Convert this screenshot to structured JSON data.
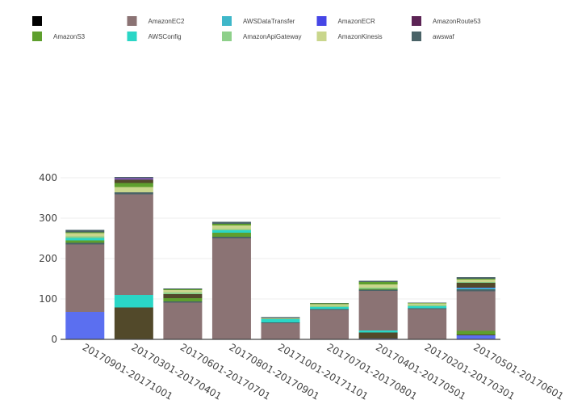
{
  "chart_data": {
    "type": "bar",
    "stacked": true,
    "categories": [
      "20170901-20171001",
      "20170301-20170401",
      "20170601-20170701",
      "20170801-20170901",
      "20171001-20171101",
      "20170701-20170801",
      "20170401-20170501",
      "20170201-20170301",
      "20170501-20170601"
    ],
    "ylim": [
      0,
      410
    ],
    "y_ticks": [
      0,
      100,
      200,
      300,
      400
    ],
    "grid": true,
    "legend_position": "top",
    "series": [
      {
        "name": "",
        "color": "#000000",
        "values": [
          0,
          0,
          0,
          0,
          0,
          0,
          0,
          0,
          0
        ]
      },
      {
        "name": "AmazonECR",
        "color": "#5B6FF0",
        "values": [
          68,
          0,
          0,
          0,
          0,
          0,
          2,
          0,
          10
        ]
      },
      {
        "name": "AWSDataTransfer",
        "color": "#52492A",
        "values": [
          0,
          79,
          0,
          0,
          0,
          0,
          15,
          0,
          2
        ]
      },
      {
        "name": "AWSConfig",
        "color": "#2AD6C6",
        "values": [
          0,
          31,
          0,
          0,
          0,
          0,
          5,
          0,
          0
        ]
      },
      {
        "name": "AmazonS3",
        "color": "#5E9F2E",
        "values": [
          0,
          0,
          0,
          0,
          0,
          0,
          0,
          0,
          9
        ]
      },
      {
        "name": "AmazonEC2",
        "color": "#8B7374",
        "values": [
          167,
          249,
          91,
          250,
          40,
          73,
          98,
          75,
          98
        ]
      },
      {
        "name": "awswaf",
        "color": "#4A6367",
        "values": [
          4,
          5,
          3,
          4,
          2,
          2,
          3,
          2,
          5
        ]
      },
      {
        "name": "AmazonRoute53",
        "color": "#5E9F2E",
        "values": [
          6,
          0,
          8,
          10,
          0,
          0,
          2,
          0,
          0
        ]
      },
      {
        "name": "AWSConfig",
        "color": "#2AD6C6",
        "values": [
          6,
          0,
          0,
          6,
          8,
          5,
          0,
          5,
          2
        ]
      },
      {
        "name": "AmazonKinesis",
        "color": "#5B6FF0",
        "values": [
          0,
          0,
          0,
          0,
          0,
          0,
          0,
          0,
          2
        ]
      },
      {
        "name": "AWSDataTransfer",
        "color": "#52492A",
        "values": [
          0,
          0,
          10,
          0,
          0,
          0,
          0,
          0,
          12
        ]
      },
      {
        "name": "AmazonApiGateway",
        "color": "#8ED08A",
        "values": [
          4,
          0,
          4,
          3,
          1,
          3,
          3,
          3,
          2
        ]
      },
      {
        "name": "AmazonKinesis",
        "color": "#C9D68C",
        "values": [
          8,
          13,
          6,
          9,
          1,
          4,
          8,
          4,
          6
        ]
      },
      {
        "name": "AmazonS3",
        "color": "#5E9F2E",
        "values": [
          2,
          10,
          2,
          4,
          0,
          2,
          6,
          1,
          2
        ]
      },
      {
        "name": "AWSDataTransfer",
        "color": "#52492A",
        "values": [
          0,
          8,
          0,
          0,
          0,
          0,
          0,
          0,
          0
        ]
      },
      {
        "name": "AmazonRoute53",
        "color": "#7A5AA8",
        "values": [
          0,
          5,
          0,
          0,
          0,
          0,
          0,
          0,
          0
        ]
      },
      {
        "name": "awswaf",
        "color": "#4A6367",
        "values": [
          6,
          2,
          2,
          5,
          3,
          1,
          3,
          1,
          4
        ]
      }
    ],
    "legend": [
      {
        "name": "",
        "color": "#000000"
      },
      {
        "name": "AmazonEC2",
        "color": "#8B7374"
      },
      {
        "name": "AWSDataTransfer",
        "color": "#3FB7C9"
      },
      {
        "name": "AmazonECR",
        "color": "#4646E6"
      },
      {
        "name": "AmazonRoute53",
        "color": "#5C2455"
      },
      {
        "name": "AmazonS3",
        "color": "#5E9F2E"
      },
      {
        "name": "AWSConfig",
        "color": "#2AD6C6"
      },
      {
        "name": "AmazonApiGateway",
        "color": "#8ED08A"
      },
      {
        "name": "AmazonKinesis",
        "color": "#C9D68C"
      },
      {
        "name": "awswaf",
        "color": "#4A6367"
      }
    ]
  }
}
